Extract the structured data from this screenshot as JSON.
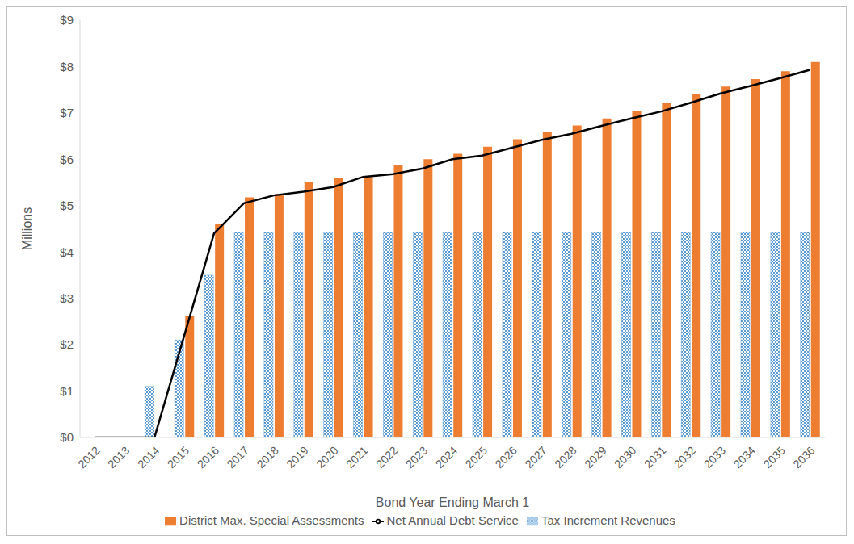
{
  "chart_data": {
    "type": "bar",
    "x_label": "Bond Year Ending March 1",
    "y_label": "Millions",
    "categories": [
      "2012",
      "2013",
      "2014",
      "2015",
      "2016",
      "2017",
      "2018",
      "2019",
      "2020",
      "2021",
      "2022",
      "2023",
      "2024",
      "2025",
      "2026",
      "2027",
      "2028",
      "2029",
      "2030",
      "2031",
      "2032",
      "2033",
      "2034",
      "2035",
      "2036"
    ],
    "series": [
      {
        "name": "Tax Increment Revenues",
        "type": "bar",
        "color": "#5b9bd5",
        "values": [
          0,
          0,
          1.1,
          2.1,
          3.5,
          4.42,
          4.42,
          4.42,
          4.42,
          4.42,
          4.42,
          4.42,
          4.42,
          4.42,
          4.42,
          4.42,
          4.42,
          4.42,
          4.42,
          4.42,
          4.42,
          4.42,
          4.42,
          4.42,
          4.42
        ]
      },
      {
        "name": "District Max. Special Assessments",
        "type": "bar",
        "color": "#ed7d31",
        "values": [
          0,
          0,
          0,
          2.62,
          4.6,
          5.18,
          5.25,
          5.5,
          5.6,
          5.62,
          5.87,
          6.0,
          6.12,
          6.27,
          6.43,
          6.58,
          6.73,
          6.88,
          7.05,
          7.22,
          7.4,
          7.57,
          7.73,
          7.9,
          8.1
        ]
      },
      {
        "name": "Net Annual Debt Service",
        "type": "line",
        "color": "#000000",
        "values": [
          0,
          0,
          0,
          2.2,
          4.4,
          5.05,
          5.22,
          5.3,
          5.4,
          5.62,
          5.68,
          5.8,
          6.0,
          6.08,
          6.25,
          6.42,
          6.55,
          6.72,
          6.88,
          7.03,
          7.22,
          7.42,
          7.58,
          7.75,
          7.93
        ]
      }
    ],
    "ylim": [
      0,
      9
    ],
    "yticks": [
      {
        "value": 0,
        "label": "$0"
      },
      {
        "value": 1,
        "label": "$1"
      },
      {
        "value": 2,
        "label": "$2"
      },
      {
        "value": 3,
        "label": "$3"
      },
      {
        "value": 4,
        "label": "$4"
      },
      {
        "value": 5,
        "label": "$5"
      },
      {
        "value": 6,
        "label": "$6"
      },
      {
        "value": 7,
        "label": "$7"
      },
      {
        "value": 8,
        "label": "$8"
      },
      {
        "value": 9,
        "label": "$9"
      }
    ],
    "grid": false,
    "legend": "bottom"
  }
}
